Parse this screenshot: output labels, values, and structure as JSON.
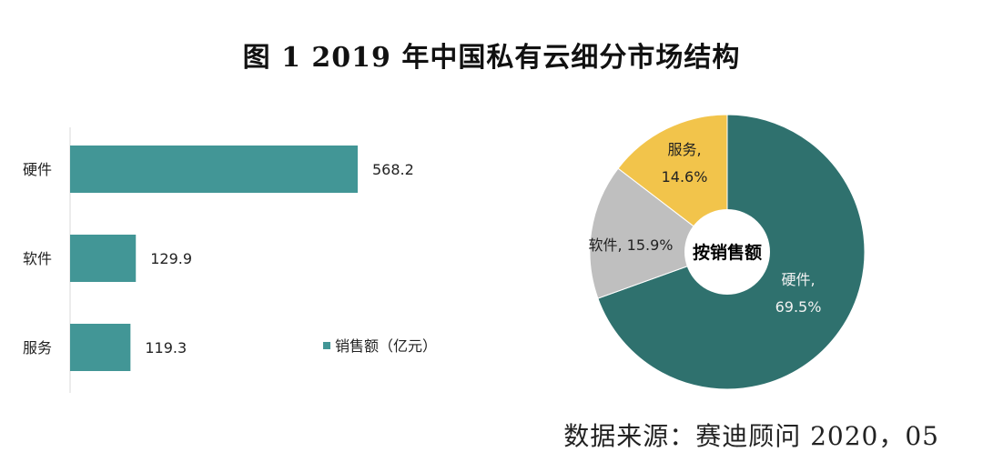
{
  "title": "图 1   2019 年中国私有云细分市场结构",
  "source": "数据来源：赛迪顾问   2020，05",
  "colors": {
    "bar": "#429696",
    "hardware": "#2f716e",
    "software": "#bfbfbf",
    "service": "#f2c44b"
  },
  "chart_data": [
    {
      "type": "bar",
      "orientation": "horizontal",
      "categories": [
        "硬件",
        "软件",
        "服务"
      ],
      "series": [
        {
          "name": "销售额（亿元）",
          "values": [
            568.2,
            129.9,
            119.3
          ]
        }
      ],
      "data_labels": [
        "568.2",
        "129.9",
        "119.3"
      ],
      "legend": "bottom-right",
      "grid": false
    },
    {
      "type": "pie",
      "donut": true,
      "center_label": "按销售额",
      "slices": [
        {
          "name": "硬件",
          "value": 69.5,
          "label_line1": "硬件,",
          "label_line2": "69.5%"
        },
        {
          "name": "软件",
          "value": 15.9,
          "label_line1": "软件, 15.9%",
          "label_line2": ""
        },
        {
          "name": "服务",
          "value": 14.6,
          "label_line1": "服务,",
          "label_line2": "14.6%"
        }
      ]
    }
  ]
}
